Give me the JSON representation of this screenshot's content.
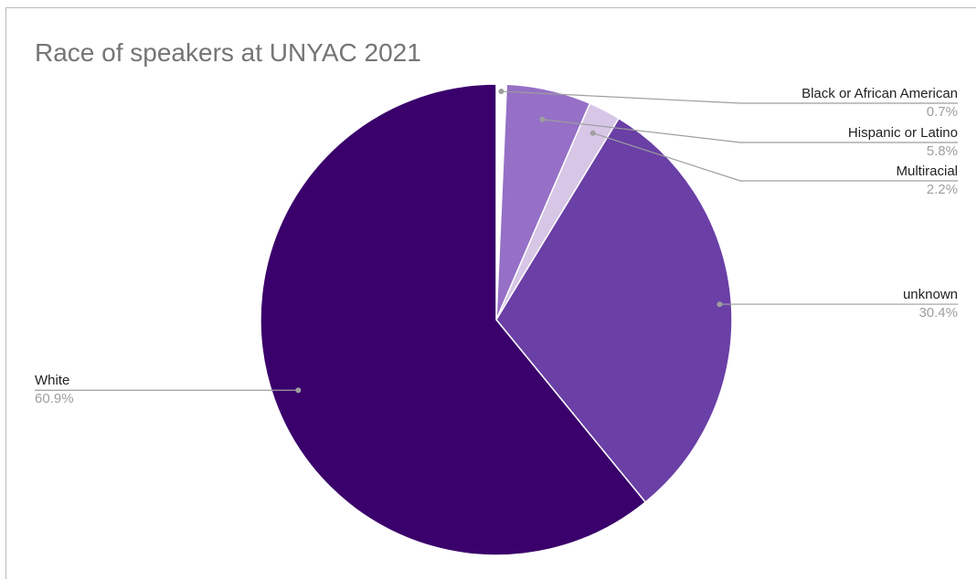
{
  "chart_data": {
    "type": "pie",
    "title": "Race of speakers at UNYAC 2021",
    "slices": [
      {
        "label": "Black or African American",
        "value": 0.7,
        "value_label": "0.7%",
        "color": "#ffffff"
      },
      {
        "label": "Hispanic or Latino",
        "value": 5.8,
        "value_label": "5.8%",
        "color": "#9570c6"
      },
      {
        "label": "Multiracial",
        "value": 2.2,
        "value_label": "2.2%",
        "color": "#d7c6e6"
      },
      {
        "label": "unknown",
        "value": 30.4,
        "value_label": "30.4%",
        "color": "#6a3fa6"
      },
      {
        "label": "White",
        "value": 60.9,
        "value_label": "60.9%",
        "color": "#3a006b"
      }
    ],
    "start_angle_deg": 0,
    "direction": "clockwise",
    "legend": "labeled-with-leader-lines"
  }
}
